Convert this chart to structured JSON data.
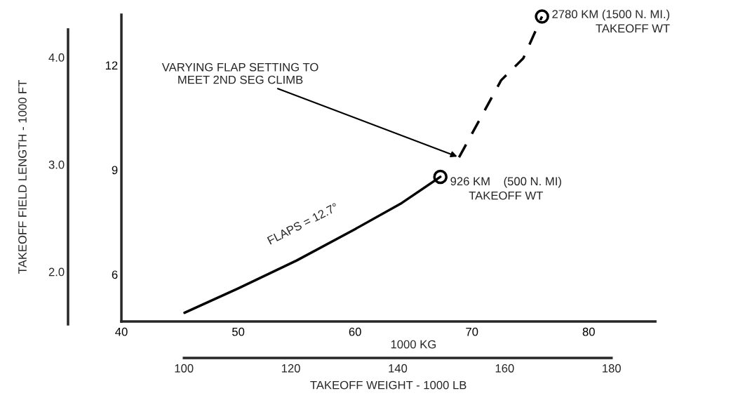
{
  "chart_data": {
    "type": "line",
    "xlabel": "1000 KG",
    "x2label": "TAKEOFF WEIGHT - 1000 LB",
    "y2label": "TAKEOFF FIELD LENGTH - 1000 FT",
    "xlim": [
      40,
      85.7
    ],
    "xticks": [
      40,
      50,
      60,
      70,
      80
    ],
    "ylim": [
      4.65,
      13.45
    ],
    "yticks": [
      6,
      9,
      12
    ],
    "x2lim": [
      88.3,
      188.2
    ],
    "x2ticks": [
      100,
      120,
      140,
      160,
      180
    ],
    "y2lim": [
      1.51,
      4.26
    ],
    "y2ticks": [
      {
        "value": 2.0,
        "label": "2.0"
      },
      {
        "value": 3.0,
        "label": "3.0"
      },
      {
        "value": 4.0,
        "label": "4.0"
      }
    ],
    "series": [
      {
        "type": "line",
        "line_style": "solid",
        "color": "#000000",
        "x": [
          45.4,
          50,
          55,
          60,
          64,
          67.3
        ],
        "values": [
          4.9,
          5.6,
          6.4,
          7.3,
          8.05,
          8.8
        ]
      },
      {
        "type": "line",
        "line_style": "dashed",
        "color": "#000000",
        "x": [
          68.9,
          72.5,
          74.4,
          76.0
        ],
        "values": [
          9.36,
          11.57,
          12.2,
          13.4
        ]
      },
      {
        "type": "scatter",
        "marker": "circle",
        "color": "#000000",
        "x": [
          67.3,
          76.0
        ],
        "values": [
          8.8,
          13.4
        ]
      }
    ],
    "annotations": [
      "FLAPS = 12.7°",
      {
        "text": "926 KM    (500 N. MI)\nTAKEOFF WT",
        "x": 67.3,
        "y": 8.8
      },
      {
        "text": "2780 KM (1500 N. MI.)\nTAKEOFF WT",
        "x": 76.0,
        "y": 13.4
      },
      {
        "text": "VARYING FLAP SETTING TO\nMEET 2ND SEG CLIMB",
        "x": 68.9,
        "y": 9.36
      }
    ],
    "legend": false,
    "grid": false
  }
}
